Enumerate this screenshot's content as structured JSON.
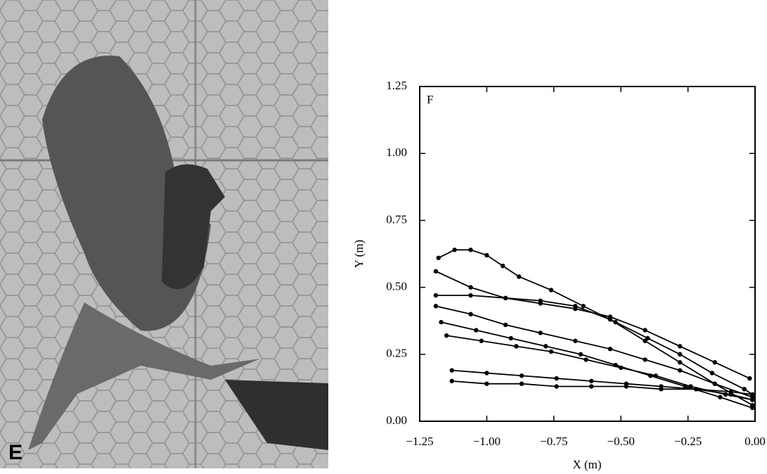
{
  "photo_label": "E",
  "chart_data": {
    "type": "line",
    "panel_label": "F",
    "x_label": "X (m)",
    "y_label": "Y (m)",
    "xlim": [
      -1.25,
      0
    ],
    "ylim": [
      0,
      1.25
    ],
    "xticks": [
      {
        "value": -1.25,
        "label": "−1.25"
      },
      {
        "value": -1,
        "label": "−1.00"
      },
      {
        "value": -0.75,
        "label": "−0.75"
      },
      {
        "value": -0.5,
        "label": "−0.50"
      },
      {
        "value": -0.25,
        "label": "−0.25"
      },
      {
        "value": 0,
        "label": "0.00"
      }
    ],
    "yticks": [
      {
        "value": 0,
        "label": "0.00"
      },
      {
        "value": 0.25,
        "label": "0.25"
      },
      {
        "value": 0.5,
        "label": "0.50"
      },
      {
        "value": 0.75,
        "label": "0.75"
      },
      {
        "value": 1,
        "label": "1.00"
      },
      {
        "value": 1.25,
        "label": "1.25"
      }
    ],
    "series": [
      {
        "color": "#000000",
        "x": [
          -1.18,
          -1.12,
          -1.06,
          -1.0,
          -0.94,
          -0.88,
          -0.76,
          -0.64,
          -0.52,
          -0.4,
          -0.28,
          -0.16,
          -0.04,
          -0.01
        ],
        "values": [
          0.61,
          0.64,
          0.64,
          0.62,
          0.58,
          0.54,
          0.49,
          0.43,
          0.37,
          0.31,
          0.25,
          0.18,
          0.12,
          0.1
        ]
      },
      {
        "color": "#000000",
        "x": [
          -1.19,
          -1.06,
          -0.93,
          -0.8,
          -0.67,
          -0.54,
          -0.41,
          -0.28,
          -0.15,
          -0.02
        ],
        "values": [
          0.56,
          0.5,
          0.46,
          0.44,
          0.42,
          0.39,
          0.34,
          0.28,
          0.22,
          0.16
        ]
      },
      {
        "color": "#000000",
        "x": [
          -1.19,
          -1.06,
          -0.93,
          -0.8,
          -0.67,
          -0.54,
          -0.41,
          -0.28,
          -0.15,
          -0.01
        ],
        "values": [
          0.47,
          0.47,
          0.46,
          0.45,
          0.43,
          0.38,
          0.3,
          0.22,
          0.14,
          0.06
        ]
      },
      {
        "color": "#000000",
        "x": [
          -1.19,
          -1.06,
          -0.93,
          -0.8,
          -0.67,
          -0.54,
          -0.41,
          -0.28,
          -0.15,
          -0.01
        ],
        "values": [
          0.43,
          0.4,
          0.36,
          0.33,
          0.3,
          0.27,
          0.23,
          0.19,
          0.14,
          0.09
        ]
      },
      {
        "color": "#000000",
        "x": [
          -1.17,
          -1.04,
          -0.91,
          -0.78,
          -0.65,
          -0.52,
          -0.39,
          -0.26,
          -0.13,
          -0.01
        ],
        "values": [
          0.37,
          0.34,
          0.31,
          0.28,
          0.25,
          0.21,
          0.17,
          0.13,
          0.09,
          0.05
        ]
      },
      {
        "color": "#000000",
        "x": [
          -1.15,
          -1.02,
          -0.89,
          -0.76,
          -0.63,
          -0.5,
          -0.37,
          -0.24,
          -0.11,
          -0.01
        ],
        "values": [
          0.32,
          0.3,
          0.28,
          0.26,
          0.23,
          0.2,
          0.17,
          0.13,
          0.1,
          0.08
        ]
      },
      {
        "color": "#000000",
        "x": [
          -1.13,
          -1.0,
          -0.87,
          -0.74,
          -0.61,
          -0.48,
          -0.35,
          -0.22,
          -0.09,
          -0.01
        ],
        "values": [
          0.19,
          0.18,
          0.17,
          0.16,
          0.15,
          0.14,
          0.13,
          0.12,
          0.1,
          0.08
        ]
      },
      {
        "color": "#000000",
        "x": [
          -1.13,
          -1.0,
          -0.87,
          -0.74,
          -0.61,
          -0.48,
          -0.35,
          -0.22,
          -0.09,
          -0.01
        ],
        "values": [
          0.15,
          0.14,
          0.14,
          0.13,
          0.13,
          0.13,
          0.12,
          0.12,
          0.11,
          0.1
        ]
      }
    ]
  }
}
